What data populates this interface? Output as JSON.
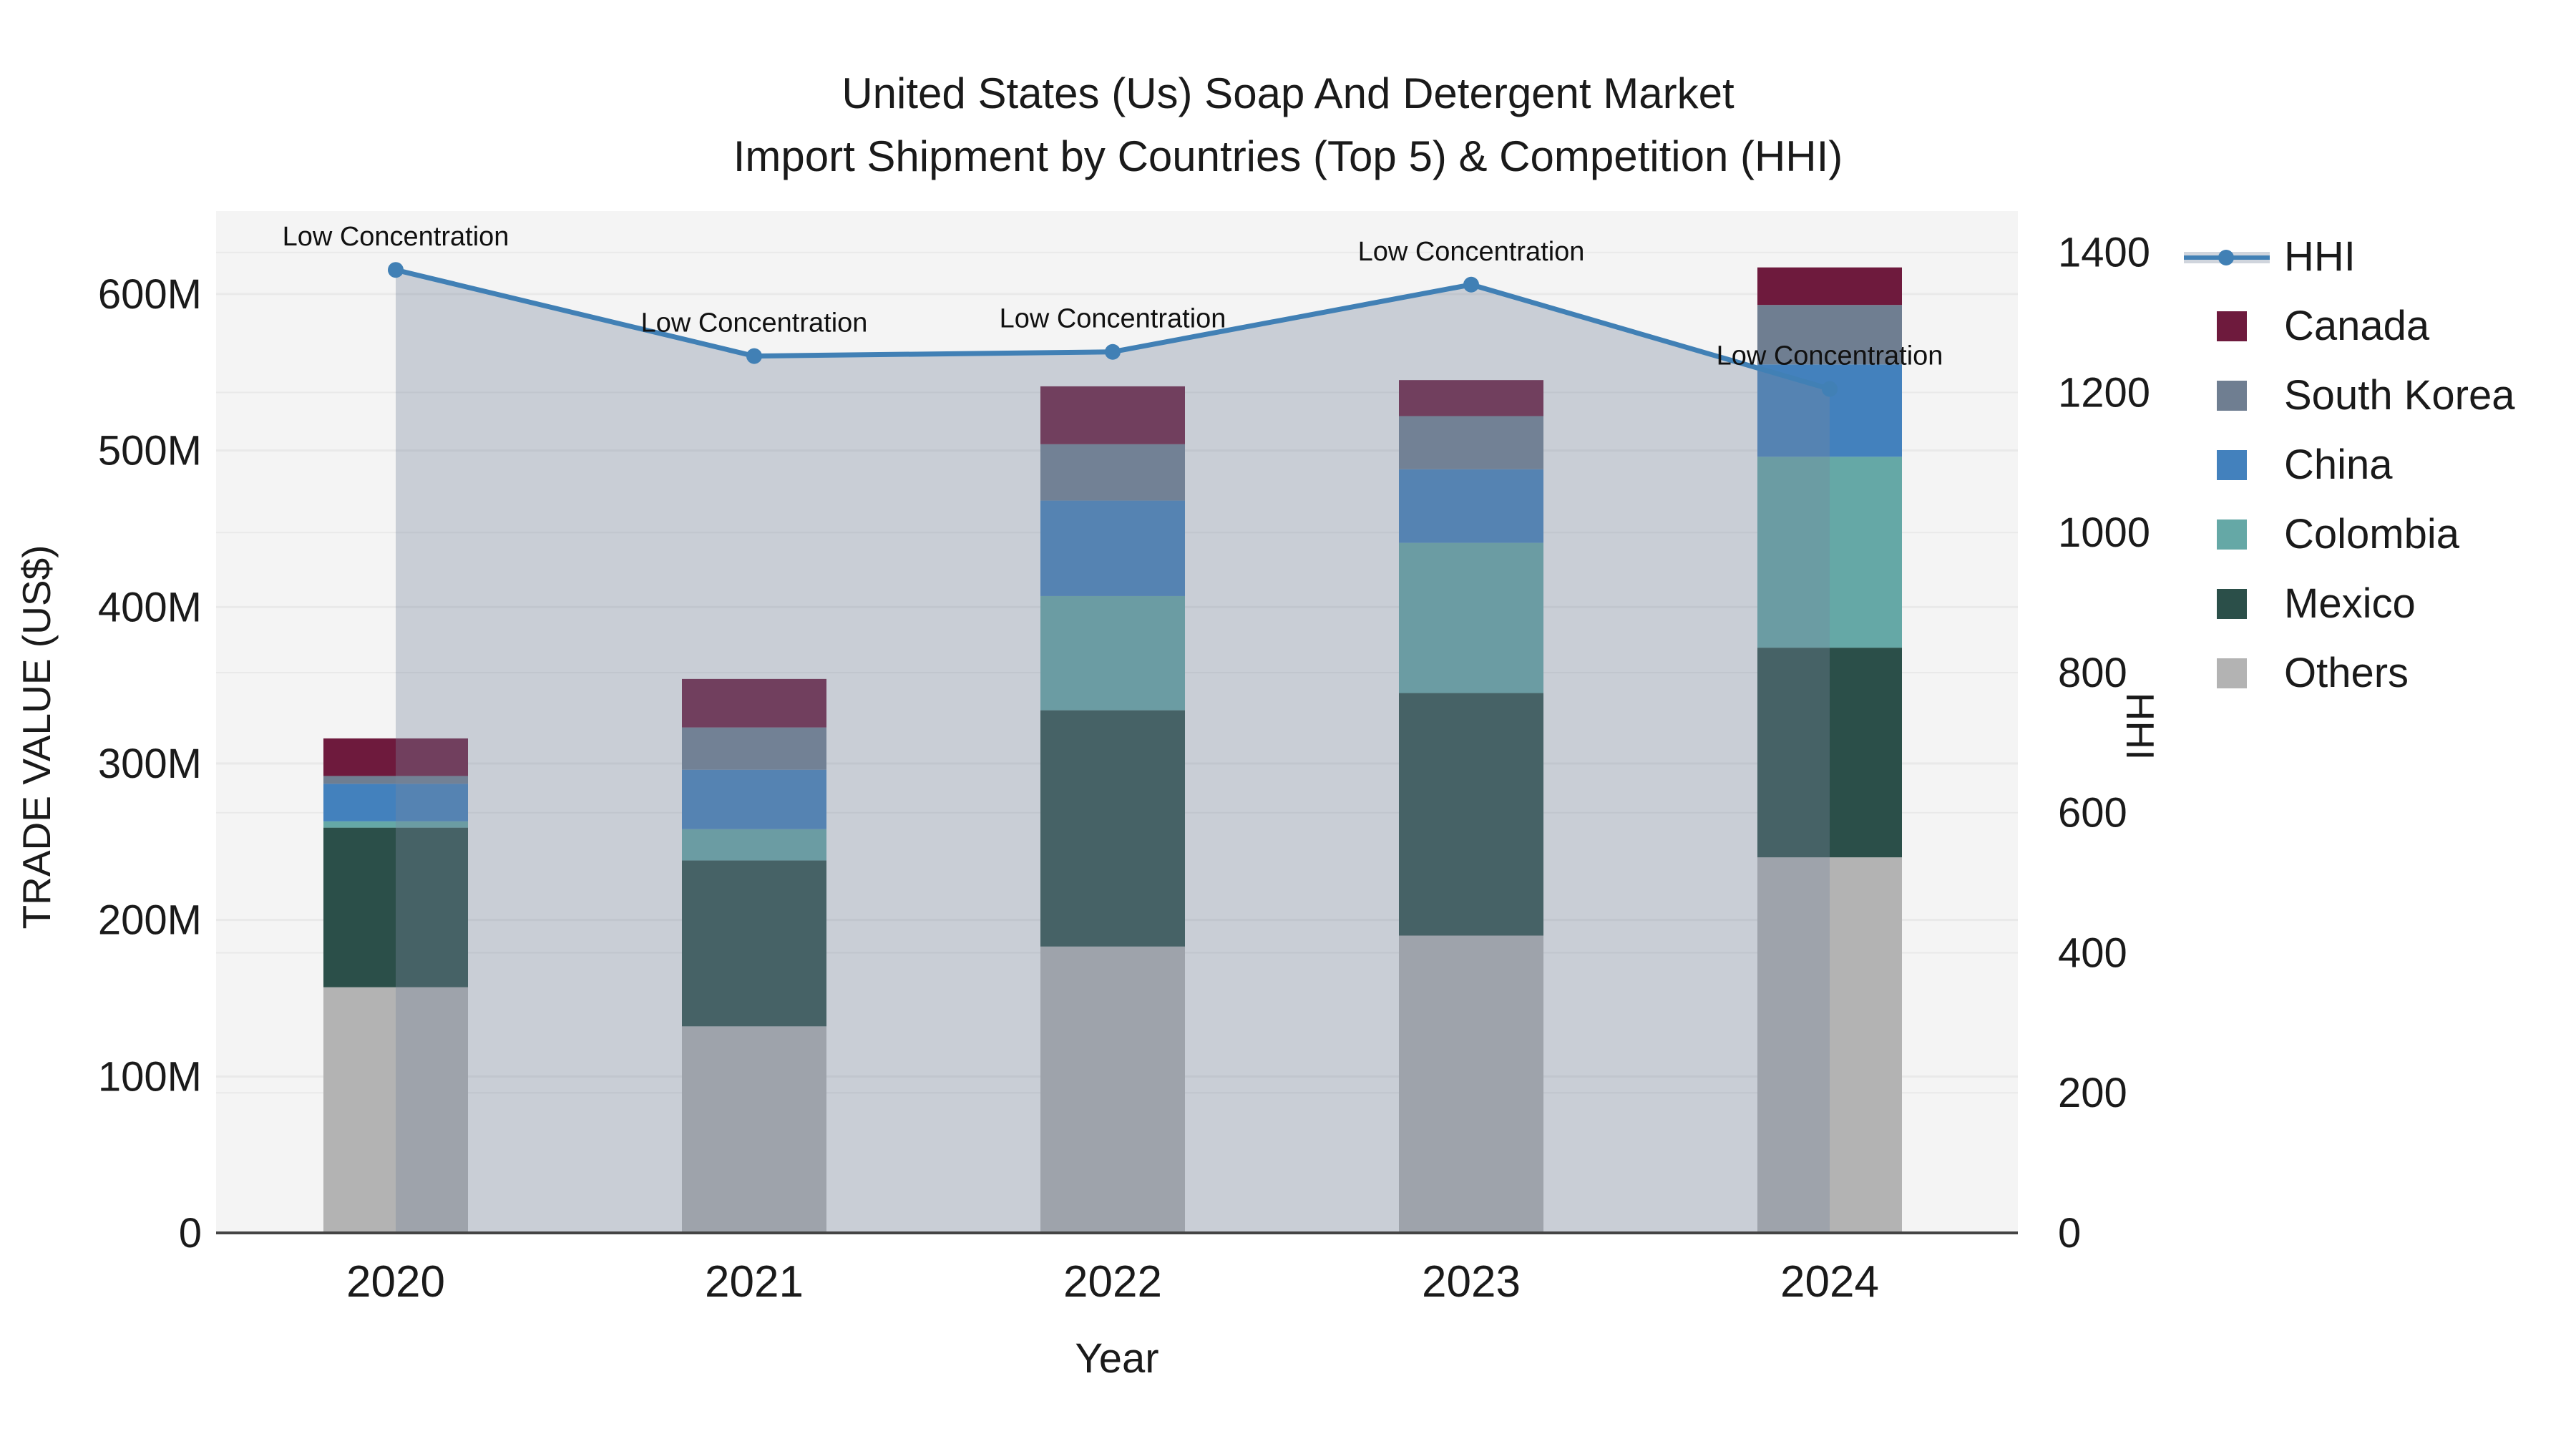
{
  "title": {
    "line1": "United States (Us) Soap And Detergent Market",
    "line2": "Import Shipment by Countries (Top 5) & Competition (HHI)"
  },
  "axes": {
    "y_left": {
      "label": "TRADE VALUE (US$)",
      "ticks": [
        "0",
        "100M",
        "200M",
        "300M",
        "400M",
        "500M",
        "600M"
      ],
      "tick_values": [
        0,
        100,
        200,
        300,
        400,
        500,
        600
      ]
    },
    "y_right": {
      "label": "HHI",
      "ticks": [
        "0",
        "200",
        "400",
        "600",
        "800",
        "1000",
        "1200",
        "1400"
      ],
      "tick_values": [
        0,
        200,
        400,
        600,
        800,
        1000,
        1200,
        1400
      ]
    },
    "x": {
      "label": "Year",
      "categories": [
        "2020",
        "2021",
        "2022",
        "2023",
        "2024"
      ]
    }
  },
  "legend": [
    {
      "label": "HHI",
      "type": "line",
      "color": "#4180b5"
    },
    {
      "label": "Canada",
      "type": "swatch",
      "color": "#6e1a3d"
    },
    {
      "label": "South Korea",
      "type": "swatch",
      "color": "#6f7e91"
    },
    {
      "label": "China",
      "type": "swatch",
      "color": "#4381bd"
    },
    {
      "label": "Colombia",
      "type": "swatch",
      "color": "#65a8a6"
    },
    {
      "label": "Mexico",
      "type": "swatch",
      "color": "#2b4f49"
    },
    {
      "label": "Others",
      "type": "swatch",
      "color": "#b3b3b3"
    }
  ],
  "colors": {
    "page_bg": "#ffffff",
    "plot_bg": "#f4f4f4",
    "grid": "#e9e9e9",
    "axis_line": "#444444",
    "text": "#1a1a1a",
    "hhi_line": "#4180b5",
    "area_fill": "rgba(119,134,157,0.35)"
  },
  "chart_data": {
    "type": "stacked-bar+line",
    "title": "United States (Us) Soap And Detergent Market — Import Shipment by Countries (Top 5) & Competition (HHI)",
    "categories": [
      "2020",
      "2021",
      "2022",
      "2023",
      "2024"
    ],
    "xlabel": "Year",
    "ylabel_left": "TRADE VALUE (US$)",
    "ylabel_right": "HHI",
    "ylim_left_millions": [
      0,
      653
    ],
    "ylim_right_hhi": [
      0,
      1459
    ],
    "grid": true,
    "legend_position": "right",
    "bar_unit": "millions USD",
    "series": [
      {
        "name": "Others",
        "type": "bar",
        "color": "#b3b3b3",
        "values": [
          157,
          132,
          183,
          190,
          240
        ]
      },
      {
        "name": "Mexico",
        "type": "bar",
        "color": "#2b4f49",
        "values": [
          102,
          106,
          151,
          155,
          134
        ]
      },
      {
        "name": "Colombia",
        "type": "bar",
        "color": "#65a8a6",
        "values": [
          4,
          20,
          73,
          96,
          122
        ]
      },
      {
        "name": "China",
        "type": "bar",
        "color": "#4381bd",
        "values": [
          24,
          38,
          61,
          47,
          59
        ]
      },
      {
        "name": "South Korea",
        "type": "bar",
        "color": "#6f7e91",
        "values": [
          5,
          27,
          36,
          34,
          38
        ]
      },
      {
        "name": "Canada",
        "type": "bar",
        "color": "#6e1a3d",
        "values": [
          24,
          31,
          37,
          23,
          24
        ]
      }
    ],
    "bar_totals_millions": [
      316,
      354,
      541,
      545,
      617
    ],
    "line_series": {
      "name": "HHI",
      "color": "#4180b5",
      "axis": "right",
      "values": [
        1375,
        1252,
        1258,
        1354,
        1205
      ],
      "area_fill": "rgba(119,134,157,0.35)",
      "point_annotations": [
        "Low Concentration",
        "Low Concentration",
        "Low Concentration",
        "Low Concentration",
        "Low Concentration"
      ]
    }
  }
}
